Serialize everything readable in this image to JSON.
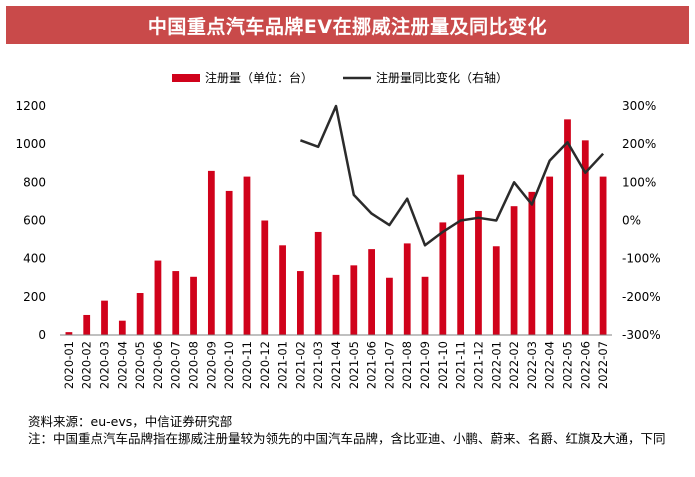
{
  "chart_data": {
    "type": "bar+line",
    "title": "中国重点汽车品牌EV在挪威注册量及同比变化",
    "legend": {
      "placement": "top-center",
      "bar_label": "注册量（单位：台）",
      "line_label": "注册量同比变化（右轴）"
    },
    "categories": [
      "2020-01",
      "2020-02",
      "2020-03",
      "2020-04",
      "2020-05",
      "2020-06",
      "2020-07",
      "2020-08",
      "2020-09",
      "2020-10",
      "2020-11",
      "2020-12",
      "2021-01",
      "2021-02",
      "2021-03",
      "2021-04",
      "2021-05",
      "2021-06",
      "2021-07",
      "2021-08",
      "2021-09",
      "2021-10",
      "2021-11",
      "2021-12",
      "2022-01",
      "2022-02",
      "2022-03",
      "2022-04",
      "2022-05",
      "2022-06",
      "2022-07"
    ],
    "series": [
      {
        "name": "注册量（单位：台）",
        "type": "bar",
        "axis": "left",
        "values": [
          15,
          105,
          180,
          75,
          220,
          390,
          335,
          305,
          860,
          755,
          830,
          600,
          470,
          335,
          540,
          315,
          365,
          450,
          300,
          480,
          305,
          590,
          840,
          650,
          465,
          675,
          750,
          830,
          1130,
          1020,
          830
        ]
      },
      {
        "name": "注册量同比变化（右轴）",
        "type": "line",
        "axis": "right",
        "unit": "%",
        "values": [
          null,
          null,
          null,
          null,
          null,
          null,
          null,
          null,
          null,
          null,
          null,
          null,
          null,
          210,
          193,
          300,
          67,
          18,
          -12,
          57,
          -65,
          -30,
          0,
          7,
          0,
          100,
          42,
          157,
          205,
          125,
          175
        ]
      }
    ],
    "y_left": {
      "min": 0,
      "max": 1200,
      "ticks": [
        0,
        200,
        400,
        600,
        800,
        1000,
        1200
      ]
    },
    "y_right": {
      "min": -300,
      "max": 300,
      "ticks": [
        300,
        200,
        100,
        0,
        -100,
        -200,
        -300
      ],
      "tick_labels": [
        "300%",
        "200%",
        "100%",
        "0%",
        "-100%",
        "-200%",
        "-300%"
      ]
    },
    "colors": {
      "bar": "#d0021b",
      "line": "#2b2b2b",
      "title_bg": "#c94a4a",
      "title_text": "#ffffff"
    },
    "grid": false
  },
  "notes": {
    "source": "资料来源：eu-evs，中信证券研究部",
    "footnote": "注：中国重点汽车品牌指在挪威注册量较为领先的中国汽车品牌，含比亚迪、小鹏、蔚来、名爵、红旗及大通，下同"
  }
}
